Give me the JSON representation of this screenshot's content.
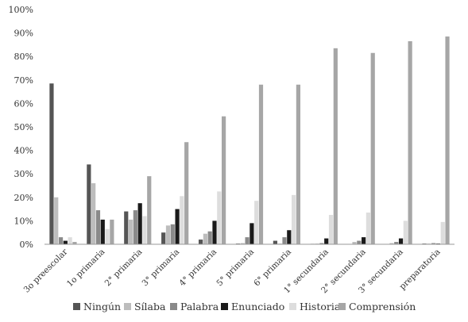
{
  "chart_data": {
    "type": "bar",
    "title": "",
    "xlabel": "",
    "ylabel": "",
    "ylim": [
      0,
      100
    ],
    "yticks": [
      "0%",
      "10%",
      "20%",
      "30%",
      "40%",
      "50%",
      "60%",
      "70%",
      "80%",
      "90%",
      "100%"
    ],
    "legend_position": "bottom",
    "grid": false,
    "categories": [
      "3o preescolar",
      "1o primaria",
      "2° primaria",
      "3° primaria",
      "4° primaria",
      "5° primaria",
      "6° primaria",
      "1° secundaria",
      "2° secundaria",
      "3° secundaria",
      "preparatoria"
    ],
    "series": [
      {
        "name": "Ningún",
        "color": "#555555",
        "values": [
          68.5,
          34,
          14,
          5,
          2,
          0.3,
          1.5,
          0.2,
          0,
          0,
          0.3
        ]
      },
      {
        "name": "Sílaba",
        "color": "#bdbdbd",
        "values": [
          20,
          26,
          10.5,
          8,
          4.5,
          0.5,
          0.3,
          0.3,
          1,
          0.5,
          0.3
        ]
      },
      {
        "name": "Palabra",
        "color": "#8a8a8a",
        "values": [
          3,
          14.5,
          14.5,
          8.5,
          5.5,
          3,
          3,
          0.5,
          1.5,
          1,
          0.5
        ]
      },
      {
        "name": "Enunciado",
        "color": "#1a1a1a",
        "values": [
          1.5,
          10.5,
          17.5,
          15,
          10,
          9,
          6,
          2.5,
          3,
          2.5,
          0.3
        ]
      },
      {
        "name": "Historia",
        "color": "#dddddd",
        "values": [
          3,
          6.5,
          12,
          20.5,
          22.5,
          18.5,
          21,
          12.5,
          13.5,
          10,
          9.5
        ]
      },
      {
        "name": "Comprensión",
        "color": "#a6a6a6",
        "values": [
          1,
          10.5,
          29,
          43.5,
          54.5,
          68,
          68,
          83.5,
          81.5,
          86.5,
          88.5
        ]
      }
    ]
  }
}
